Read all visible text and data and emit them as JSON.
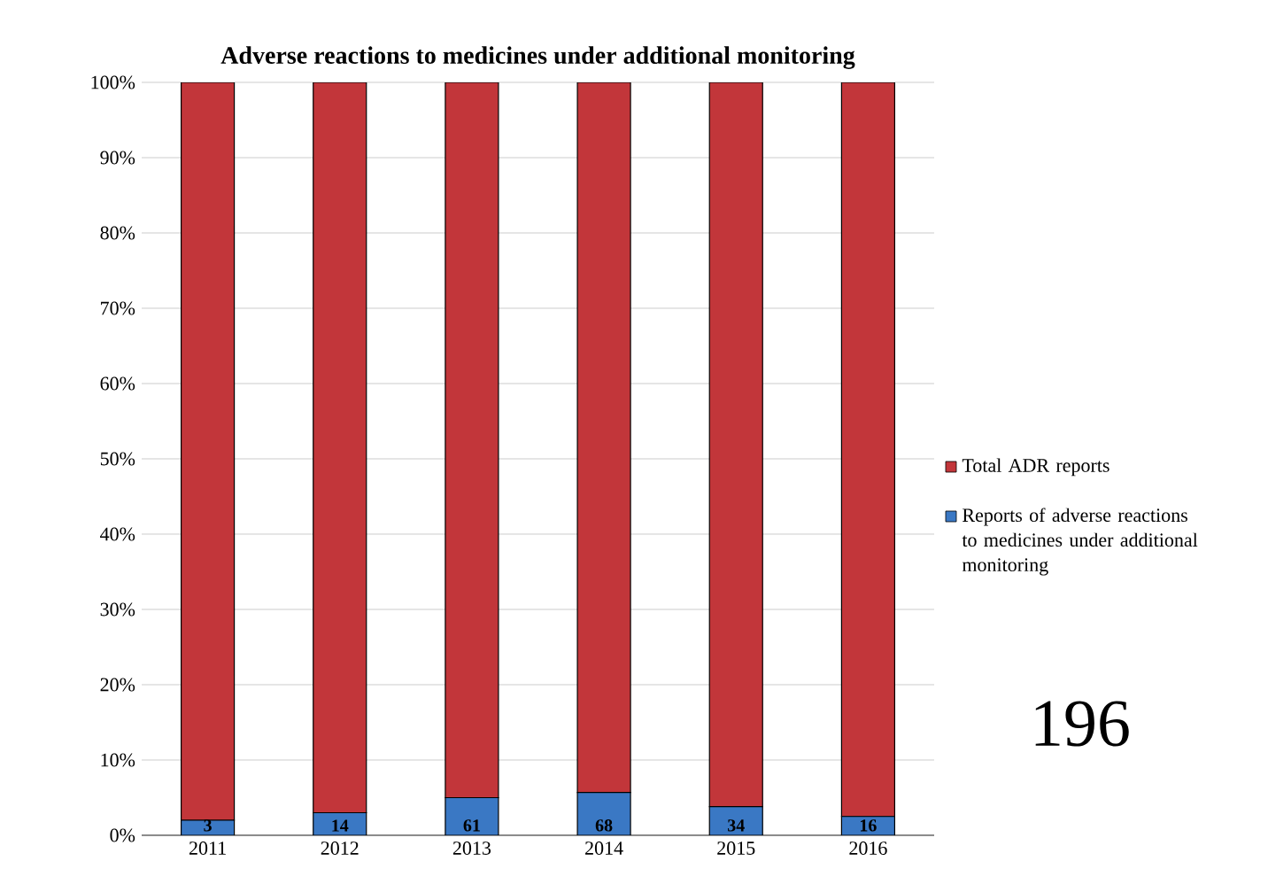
{
  "chart_data": {
    "type": "bar",
    "stacked": true,
    "title": "Adverse reactions to medicines under additional monitoring",
    "categories": [
      "2011",
      "2012",
      "2013",
      "2014",
      "2015",
      "2016"
    ],
    "series": [
      {
        "name": "Reports of adverse reactions to medicines under additional monitoring",
        "color": "#3a78c4",
        "values": [
          2.0,
          3.0,
          5.0,
          5.7,
          3.8,
          2.5
        ]
      },
      {
        "name": "Total ADR reports",
        "color": "#c2363a",
        "values": [
          98.0,
          97.0,
          95.0,
          94.3,
          96.2,
          97.5
        ]
      }
    ],
    "ylim": [
      0,
      100
    ],
    "yticks": [
      {
        "value": 0,
        "label": "0%"
      },
      {
        "value": 10,
        "label": "10%"
      },
      {
        "value": 20,
        "label": "20%"
      },
      {
        "value": 30,
        "label": "30%"
      },
      {
        "value": 40,
        "label": "40%"
      },
      {
        "value": 50,
        "label": "50%"
      },
      {
        "value": 60,
        "label": "60%"
      },
      {
        "value": 70,
        "label": "70%"
      },
      {
        "value": 80,
        "label": "80%"
      },
      {
        "value": 90,
        "label": "90%"
      },
      {
        "value": 100,
        "label": "100%"
      }
    ],
    "grid": "y",
    "legend": "right",
    "annotations": [
      {
        "text": "3",
        "x": "2011",
        "y": 0
      },
      {
        "text": "14",
        "x": "2012",
        "y": 0
      },
      {
        "text": "61",
        "x": "2013",
        "y": 0
      },
      {
        "text": "68",
        "x": "2014",
        "y": 0
      },
      {
        "text": "34",
        "x": "2015",
        "y": 0
      },
      {
        "text": "16",
        "x": "2016",
        "y": 0
      },
      "196"
    ]
  }
}
